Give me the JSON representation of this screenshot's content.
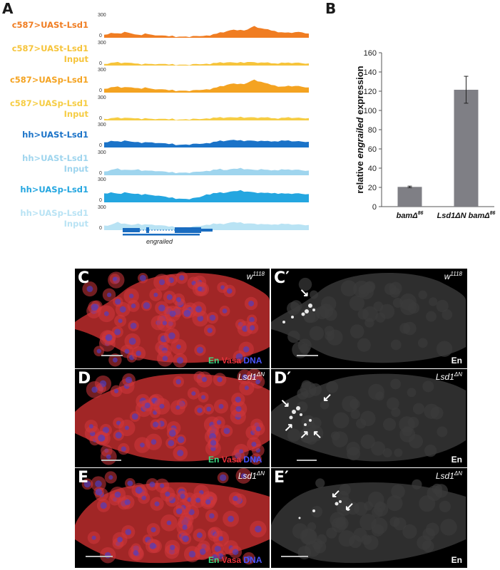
{
  "panels": {
    "a": "A",
    "b": "B",
    "c": "C",
    "c_prime": "C′",
    "d": "D",
    "d_prime": "D′",
    "e": "E",
    "e_prime": "E′"
  },
  "tracks": [
    {
      "label": "c587>UASt-Lsd1",
      "color": "#f07d22",
      "max": "300",
      "min": "0",
      "profile": [
        0.12,
        0.18,
        0.15,
        0.2,
        0.16,
        0.1,
        0.14,
        0.12,
        0.08,
        0.06,
        0.05,
        0.04,
        0.03,
        0.04,
        0.06,
        0.08,
        0.12,
        0.18,
        0.25,
        0.3,
        0.28,
        0.32,
        0.45,
        0.35,
        0.3,
        0.26,
        0.2,
        0.18,
        0.22,
        0.2,
        0.14
      ]
    },
    {
      "label": "c587>UASt-Lsd1\nInput",
      "color": "#f6c43b",
      "max": "300",
      "min": "0",
      "profile": [
        0.06,
        0.1,
        0.12,
        0.08,
        0.1,
        0.06,
        0.05,
        0.06,
        0.05,
        0.04,
        0.03,
        0.03,
        0.02,
        0.03,
        0.05,
        0.06,
        0.08,
        0.1,
        0.12,
        0.1,
        0.11,
        0.14,
        0.12,
        0.1,
        0.09,
        0.08,
        0.1,
        0.09,
        0.11,
        0.08,
        0.06
      ]
    },
    {
      "label": "c587>UASp-Lsd1",
      "color": "#f4a321",
      "max": "300",
      "min": "0",
      "profile": [
        0.15,
        0.2,
        0.22,
        0.18,
        0.2,
        0.16,
        0.18,
        0.15,
        0.12,
        0.1,
        0.08,
        0.07,
        0.06,
        0.07,
        0.1,
        0.12,
        0.16,
        0.22,
        0.3,
        0.34,
        0.32,
        0.38,
        0.5,
        0.4,
        0.32,
        0.28,
        0.22,
        0.24,
        0.26,
        0.22,
        0.18
      ]
    },
    {
      "label": "c587>UASp-Lsd1\nInput",
      "color": "#f6cd44",
      "max": "300",
      "min": "0",
      "profile": [
        0.06,
        0.08,
        0.1,
        0.07,
        0.09,
        0.07,
        0.06,
        0.06,
        0.05,
        0.04,
        0.04,
        0.03,
        0.03,
        0.04,
        0.05,
        0.07,
        0.09,
        0.1,
        0.11,
        0.1,
        0.12,
        0.12,
        0.11,
        0.1,
        0.09,
        0.08,
        0.09,
        0.1,
        0.1,
        0.08,
        0.07
      ]
    },
    {
      "label": "hh>UASt-Lsd1",
      "color": "#1b73c8",
      "max": "300",
      "min": "0",
      "profile": [
        0.2,
        0.25,
        0.22,
        0.24,
        0.22,
        0.2,
        0.18,
        0.2,
        0.16,
        0.14,
        0.12,
        0.1,
        0.1,
        0.12,
        0.14,
        0.16,
        0.2,
        0.24,
        0.26,
        0.28,
        0.26,
        0.27,
        0.25,
        0.24,
        0.22,
        0.24,
        0.26,
        0.25,
        0.24,
        0.22,
        0.2
      ]
    },
    {
      "label": "hh>UASt-Lsd1\nInput",
      "color": "#9fd5ee",
      "max": "300",
      "min": "0",
      "profile": [
        0.15,
        0.2,
        0.25,
        0.18,
        0.2,
        0.22,
        0.16,
        0.18,
        0.15,
        0.12,
        0.1,
        0.1,
        0.09,
        0.1,
        0.14,
        0.16,
        0.2,
        0.22,
        0.2,
        0.24,
        0.26,
        0.24,
        0.2,
        0.22,
        0.18,
        0.2,
        0.22,
        0.2,
        0.22,
        0.18,
        0.16
      ]
    },
    {
      "label": "hh>UASp-Lsd1",
      "color": "#24a6e0",
      "max": "300",
      "min": "0",
      "profile": [
        0.35,
        0.38,
        0.32,
        0.36,
        0.34,
        0.32,
        0.3,
        0.28,
        0.25,
        0.2,
        0.16,
        0.14,
        0.12,
        0.14,
        0.2,
        0.3,
        0.34,
        0.36,
        0.38,
        0.42,
        0.45,
        0.42,
        0.38,
        0.36,
        0.34,
        0.36,
        0.34,
        0.32,
        0.35,
        0.32,
        0.3
      ]
    },
    {
      "label": "hh>UASp-Lsd1\nInput",
      "color": "#b9e3f4",
      "max": "300",
      "min": "0",
      "profile": [
        0.18,
        0.2,
        0.3,
        0.22,
        0.2,
        0.24,
        0.2,
        0.22,
        0.18,
        0.15,
        0.12,
        0.1,
        0.1,
        0.12,
        0.16,
        0.2,
        0.24,
        0.22,
        0.26,
        0.3,
        0.28,
        0.26,
        0.24,
        0.22,
        0.2,
        0.22,
        0.24,
        0.22,
        0.22,
        0.2,
        0.18
      ]
    }
  ],
  "gene": {
    "name": "engrailed",
    "color": "#1a6cc0"
  },
  "chart_data": {
    "type": "bar",
    "categories": [
      "bamΔ",
      "Lsd1ΔN bamΔ"
    ],
    "category_super": [
      "86",
      "86"
    ],
    "values": [
      20.5,
      121.5
    ],
    "errors": [
      0.8,
      14
    ],
    "ylabel_pre": "relative ",
    "ylabel_italic": "engrailed",
    "ylabel_post": " expression",
    "ylim": [
      0,
      160
    ],
    "yticks": [
      "0",
      "20",
      "40",
      "60",
      "80",
      "100",
      "120",
      "140",
      "160"
    ],
    "bar_color": "#7f7f85",
    "grid": false
  },
  "micrographs": {
    "c": {
      "genotype_base": "w",
      "genotype_sup": "1118",
      "stain_en": "En",
      "stain_vasa": "Vasa",
      "stain_dna": "DNA"
    },
    "c_prime": {
      "genotype_base": "w",
      "genotype_sup": "1118",
      "channel": "En"
    },
    "d": {
      "genotype_base": "Lsd1",
      "genotype_sup": "ΔN",
      "stain_en": "En",
      "stain_vasa": "Vasa",
      "stain_dna": "DNA"
    },
    "d_prime": {
      "genotype_base": "Lsd1",
      "genotype_sup": "ΔN",
      "channel": "En"
    },
    "e": {
      "genotype_base": "Lsd1",
      "genotype_sup": "ΔN",
      "stain_en": "En",
      "stain_vasa": "Vasa",
      "stain_dna": "DNA"
    },
    "e_prime": {
      "genotype_base": "Lsd1",
      "genotype_sup": "ΔN",
      "channel": "En"
    }
  },
  "colors": {
    "en": "#3ddc84",
    "vasa": "#e8313a",
    "dna": "#3340e6"
  }
}
